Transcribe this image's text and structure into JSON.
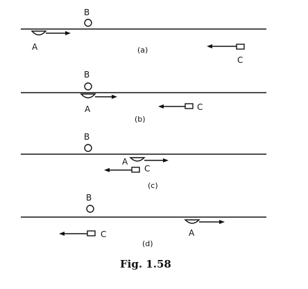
{
  "caption": "Fig. 1.58",
  "labels": {
    "A": "A",
    "B": "B",
    "C": "C"
  },
  "panels": [
    {
      "tag": "(a)"
    },
    {
      "tag": "(b)"
    },
    {
      "tag": "(c)"
    },
    {
      "tag": "(d)"
    }
  ]
}
